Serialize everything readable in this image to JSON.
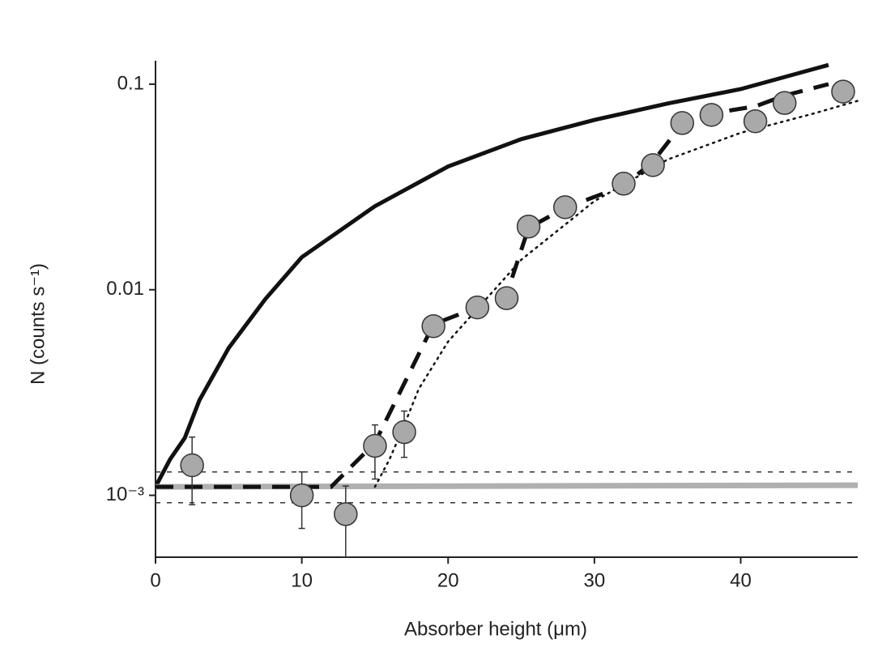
{
  "chart_data": {
    "type": "scatter",
    "x_label": "Absorber height  (μm)",
    "y_label": "N (counts s⁻¹)",
    "y_scale": "log",
    "xlim": [
      0,
      48
    ],
    "ylim": [
      0.0005,
      0.13
    ],
    "xticks": [
      0,
      10,
      20,
      30,
      40
    ],
    "yticks": [
      0.1,
      0.01,
      {
        "value": 0.001,
        "label": "10⁻³"
      }
    ],
    "points": {
      "color": "#a9a9a9",
      "x": [
        2.5,
        10,
        13,
        15,
        17,
        19,
        22,
        24,
        25.5,
        28,
        32,
        34,
        36,
        38,
        41,
        43,
        47
      ],
      "values": [
        0.0014,
        0.001,
        0.00081,
        0.00174,
        0.00203,
        0.00665,
        0.0082,
        0.0091,
        0.0203,
        0.0252,
        0.0328,
        0.0404,
        0.0647,
        0.0709,
        0.066,
        0.081,
        0.092
      ],
      "err_low": [
        0.0009,
        0.00069,
        0.0005,
        0.0012,
        0.00153,
        null,
        null,
        null,
        null,
        null,
        null,
        null,
        null,
        null,
        null,
        null,
        null
      ],
      "err_high": [
        0.00192,
        0.0013,
        0.00111,
        0.0022,
        0.00257,
        null,
        null,
        null,
        null,
        null,
        null,
        null,
        null,
        null,
        null,
        null,
        null
      ]
    },
    "lines": [
      {
        "style": "solid",
        "color": "#111111",
        "width": 5,
        "x": [
          0,
          1,
          2,
          3,
          5,
          7.5,
          10,
          15,
          20,
          25,
          30,
          35,
          40,
          46
        ],
        "values": [
          0.0011,
          0.0015,
          0.0019,
          0.0029,
          0.0052,
          0.009,
          0.0144,
          0.0255,
          0.0398,
          0.054,
          0.067,
          0.0805,
          0.0946,
          0.124
        ]
      },
      {
        "style": "gray",
        "color": "#b0b0b0",
        "width": 7,
        "x": [
          0,
          48
        ],
        "values": [
          0.0011,
          0.00112
        ]
      },
      {
        "style": "thin-dashed",
        "color": "#333333",
        "width": 1.5,
        "x": [
          0,
          48
        ],
        "values": [
          0.0013,
          0.0013
        ]
      },
      {
        "style": "thin-dashed",
        "color": "#333333",
        "width": 1.5,
        "x": [
          0,
          48
        ],
        "values": [
          0.00092,
          0.00092
        ]
      },
      {
        "style": "dashed",
        "color": "#111111",
        "width": 5,
        "x": [
          0,
          12,
          15,
          17,
          19,
          22,
          24,
          25.5,
          28,
          32,
          34,
          36,
          38,
          41,
          43,
          46
        ],
        "values": [
          0.0011,
          0.0011,
          0.0018,
          0.0035,
          0.0068,
          0.0082,
          0.0095,
          0.02,
          0.025,
          0.032,
          0.042,
          0.064,
          0.072,
          0.078,
          0.088,
          0.1
        ]
      },
      {
        "style": "dotted",
        "color": "#111111",
        "width": 2.5,
        "x": [
          15,
          16,
          17,
          18,
          20,
          25,
          30,
          35,
          40,
          45,
          48
        ],
        "values": [
          0.0011,
          0.0015,
          0.0022,
          0.0033,
          0.0056,
          0.014,
          0.027,
          0.043,
          0.058,
          0.072,
          0.083
        ]
      }
    ]
  }
}
